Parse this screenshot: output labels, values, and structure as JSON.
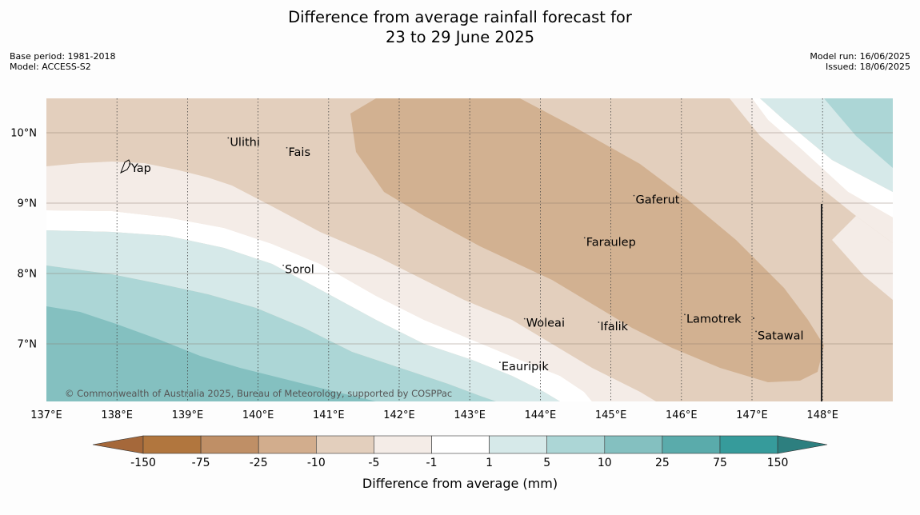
{
  "title": {
    "line1": "Difference from average rainfall forecast for",
    "line2": "23 to 29 June 2025"
  },
  "meta_left": {
    "base_period": "Base period: 1981-2018",
    "model": "Model: ACCESS-S2"
  },
  "meta_right": {
    "model_run": "Model run: 16/06/2025",
    "issued": "Issued: 18/06/2025"
  },
  "map": {
    "lon_labels": [
      "137°E",
      "138°E",
      "139°E",
      "140°E",
      "141°E",
      "142°E",
      "143°E",
      "144°E",
      "145°E",
      "146°E",
      "147°E",
      "148°E"
    ],
    "lat_labels": [
      "10°N",
      "9°N",
      "8°N",
      "7°N"
    ],
    "places": [
      {
        "name": "Yap",
        "lon": 138.2,
        "lat": 9.5
      },
      {
        "name": "Ulithi",
        "lon": 139.6,
        "lat": 9.87
      },
      {
        "name": "Fais",
        "lon": 140.43,
        "lat": 9.73
      },
      {
        "name": "Gaferut",
        "lon": 145.35,
        "lat": 9.05
      },
      {
        "name": "Faraulep",
        "lon": 144.65,
        "lat": 8.45
      },
      {
        "name": "Sorol",
        "lon": 140.38,
        "lat": 8.06
      },
      {
        "name": "Lamotrek",
        "lon": 146.07,
        "lat": 7.36
      },
      {
        "name": "Woleai",
        "lon": 143.8,
        "lat": 7.3
      },
      {
        "name": "Ifalik",
        "lon": 144.85,
        "lat": 7.25
      },
      {
        "name": "Satawal",
        "lon": 147.08,
        "lat": 7.12
      },
      {
        "name": "Eauripik",
        "lon": 143.45,
        "lat": 6.68
      }
    ],
    "copyright": "© Commonwealth of Australia 2025, Bureau of Meteorology, supported by COSPPac"
  },
  "colorbar": {
    "ticks": [
      "-150",
      "-75",
      "-25",
      "-10",
      "-5",
      "-1",
      "1",
      "5",
      "10",
      "25",
      "75",
      "150"
    ],
    "colors": [
      "#a5683a",
      "#b1763e",
      "#bf8f66",
      "#d2ad8d",
      "#e3cfbd",
      "#f4ece7",
      "#ffffff",
      "#d6e9e9",
      "#acd6d6",
      "#84c0c0",
      "#5aabab",
      "#369b9b",
      "#2d7f7f"
    ],
    "label": "Difference from average (mm)"
  }
}
